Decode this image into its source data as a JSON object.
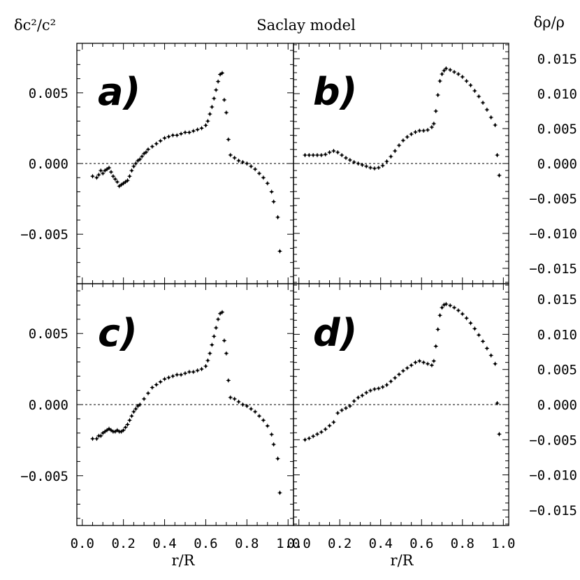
{
  "chart_data": {
    "type": "scatter",
    "title": "Saclay model",
    "left_ylabel": "δc²/c²",
    "right_ylabel": "δρ/ρ",
    "xlabel": "r/R",
    "xlim": [
      0.0,
      1.0
    ],
    "xticks": [
      "0.0",
      "0.2",
      "0.4",
      "0.6",
      "0.8",
      "1.0"
    ],
    "left_ylim": [
      -0.0085,
      0.0085
    ],
    "left_yticks": [
      "0.005",
      "0.000",
      "-0.005"
    ],
    "right_ylim": [
      -0.0172,
      0.0172
    ],
    "right_yticks": [
      "0.015",
      "0.010",
      "0.005",
      "0.000",
      "-0.005",
      "-0.010",
      "-0.015"
    ],
    "panels": [
      {
        "label": "a)",
        "axis": "left",
        "points": [
          [
            0.05,
            -0.0009
          ],
          [
            0.07,
            -0.001
          ],
          [
            0.08,
            -0.0008
          ],
          [
            0.09,
            -0.0005
          ],
          [
            0.1,
            -0.0007
          ],
          [
            0.11,
            -0.0005
          ],
          [
            0.12,
            -0.0004
          ],
          [
            0.13,
            -0.0003
          ],
          [
            0.14,
            -0.0006
          ],
          [
            0.15,
            -0.0009
          ],
          [
            0.16,
            -0.0011
          ],
          [
            0.17,
            -0.0013
          ],
          [
            0.18,
            -0.0016
          ],
          [
            0.19,
            -0.0015
          ],
          [
            0.2,
            -0.0014
          ],
          [
            0.21,
            -0.0013
          ],
          [
            0.22,
            -0.0012
          ],
          [
            0.23,
            -0.0009
          ],
          [
            0.24,
            -0.0005
          ],
          [
            0.25,
            -0.0002
          ],
          [
            0.26,
            0.0
          ],
          [
            0.27,
            0.0002
          ],
          [
            0.28,
            0.0003
          ],
          [
            0.29,
            0.0005
          ],
          [
            0.3,
            0.0007
          ],
          [
            0.31,
            0.0008
          ],
          [
            0.32,
            0.001
          ],
          [
            0.34,
            0.0012
          ],
          [
            0.36,
            0.0014
          ],
          [
            0.38,
            0.0016
          ],
          [
            0.4,
            0.0018
          ],
          [
            0.42,
            0.0019
          ],
          [
            0.44,
            0.002
          ],
          [
            0.46,
            0.002
          ],
          [
            0.48,
            0.0021
          ],
          [
            0.5,
            0.0022
          ],
          [
            0.52,
            0.0022
          ],
          [
            0.54,
            0.0023
          ],
          [
            0.56,
            0.0024
          ],
          [
            0.58,
            0.0025
          ],
          [
            0.6,
            0.0027
          ],
          [
            0.61,
            0.003
          ],
          [
            0.62,
            0.0035
          ],
          [
            0.63,
            0.004
          ],
          [
            0.64,
            0.0046
          ],
          [
            0.65,
            0.0052
          ],
          [
            0.66,
            0.0058
          ],
          [
            0.67,
            0.0063
          ],
          [
            0.68,
            0.0064
          ],
          [
            0.69,
            0.0045
          ],
          [
            0.7,
            0.0036
          ],
          [
            0.71,
            0.0017
          ],
          [
            0.72,
            0.0006
          ],
          [
            0.74,
            0.0004
          ],
          [
            0.76,
            0.0002
          ],
          [
            0.78,
            0.0001
          ],
          [
            0.8,
            0.0
          ],
          [
            0.82,
            -0.0002
          ],
          [
            0.84,
            -0.0004
          ],
          [
            0.86,
            -0.0007
          ],
          [
            0.88,
            -0.001
          ],
          [
            0.9,
            -0.0014
          ],
          [
            0.92,
            -0.002
          ],
          [
            0.93,
            -0.0027
          ],
          [
            0.95,
            -0.0038
          ],
          [
            0.96,
            -0.0062
          ]
        ]
      },
      {
        "label": "b)",
        "axis": "right",
        "points": [
          [
            0.03,
            0.0012
          ],
          [
            0.05,
            0.0012
          ],
          [
            0.07,
            0.0012
          ],
          [
            0.09,
            0.0012
          ],
          [
            0.11,
            0.0012
          ],
          [
            0.13,
            0.0013
          ],
          [
            0.15,
            0.0016
          ],
          [
            0.17,
            0.0018
          ],
          [
            0.19,
            0.0016
          ],
          [
            0.21,
            0.0012
          ],
          [
            0.23,
            0.0008
          ],
          [
            0.25,
            0.0005
          ],
          [
            0.27,
            0.0002
          ],
          [
            0.29,
            0.0
          ],
          [
            0.31,
            -0.0002
          ],
          [
            0.33,
            -0.0004
          ],
          [
            0.35,
            -0.0006
          ],
          [
            0.37,
            -0.0007
          ],
          [
            0.39,
            -0.0006
          ],
          [
            0.41,
            -0.0003
          ],
          [
            0.43,
            0.0003
          ],
          [
            0.45,
            0.001
          ],
          [
            0.47,
            0.0018
          ],
          [
            0.49,
            0.0026
          ],
          [
            0.51,
            0.0033
          ],
          [
            0.53,
            0.0038
          ],
          [
            0.55,
            0.0042
          ],
          [
            0.57,
            0.0045
          ],
          [
            0.59,
            0.0047
          ],
          [
            0.61,
            0.0047
          ],
          [
            0.63,
            0.0048
          ],
          [
            0.65,
            0.0052
          ],
          [
            0.66,
            0.0057
          ],
          [
            0.67,
            0.0075
          ],
          [
            0.68,
            0.0098
          ],
          [
            0.69,
            0.0118
          ],
          [
            0.7,
            0.0128
          ],
          [
            0.71,
            0.0133
          ],
          [
            0.72,
            0.0136
          ],
          [
            0.74,
            0.0134
          ],
          [
            0.76,
            0.0131
          ],
          [
            0.78,
            0.0128
          ],
          [
            0.8,
            0.0124
          ],
          [
            0.82,
            0.0118
          ],
          [
            0.84,
            0.0112
          ],
          [
            0.86,
            0.0104
          ],
          [
            0.88,
            0.0096
          ],
          [
            0.9,
            0.0087
          ],
          [
            0.92,
            0.0077
          ],
          [
            0.94,
            0.0066
          ],
          [
            0.96,
            0.0055
          ],
          [
            0.97,
            0.0012
          ],
          [
            0.98,
            -0.0017
          ]
        ]
      },
      {
        "label": "c)",
        "axis": "left",
        "points": [
          [
            0.05,
            -0.0024
          ],
          [
            0.07,
            -0.0024
          ],
          [
            0.08,
            -0.0022
          ],
          [
            0.09,
            -0.0022
          ],
          [
            0.1,
            -0.002
          ],
          [
            0.11,
            -0.0019
          ],
          [
            0.12,
            -0.0018
          ],
          [
            0.13,
            -0.0017
          ],
          [
            0.14,
            -0.0018
          ],
          [
            0.15,
            -0.0019
          ],
          [
            0.16,
            -0.0019
          ],
          [
            0.17,
            -0.0018
          ],
          [
            0.18,
            -0.0019
          ],
          [
            0.19,
            -0.0019
          ],
          [
            0.2,
            -0.0018
          ],
          [
            0.21,
            -0.0016
          ],
          [
            0.22,
            -0.0014
          ],
          [
            0.23,
            -0.0011
          ],
          [
            0.24,
            -0.0008
          ],
          [
            0.25,
            -0.0005
          ],
          [
            0.26,
            -0.0003
          ],
          [
            0.27,
            -0.0001
          ],
          [
            0.28,
            0.0
          ],
          [
            0.3,
            0.0004
          ],
          [
            0.32,
            0.0008
          ],
          [
            0.34,
            0.0012
          ],
          [
            0.36,
            0.0014
          ],
          [
            0.38,
            0.0016
          ],
          [
            0.4,
            0.0018
          ],
          [
            0.42,
            0.0019
          ],
          [
            0.44,
            0.002
          ],
          [
            0.46,
            0.0021
          ],
          [
            0.48,
            0.0021
          ],
          [
            0.5,
            0.0022
          ],
          [
            0.52,
            0.0023
          ],
          [
            0.54,
            0.0023
          ],
          [
            0.56,
            0.0024
          ],
          [
            0.58,
            0.0025
          ],
          [
            0.6,
            0.0027
          ],
          [
            0.61,
            0.0031
          ],
          [
            0.62,
            0.0036
          ],
          [
            0.63,
            0.0042
          ],
          [
            0.64,
            0.0048
          ],
          [
            0.65,
            0.0054
          ],
          [
            0.66,
            0.006
          ],
          [
            0.67,
            0.0064
          ],
          [
            0.68,
            0.0065
          ],
          [
            0.69,
            0.0045
          ],
          [
            0.7,
            0.0036
          ],
          [
            0.71,
            0.0017
          ],
          [
            0.72,
            0.0005
          ],
          [
            0.74,
            0.0004
          ],
          [
            0.76,
            0.0002
          ],
          [
            0.78,
            0.0
          ],
          [
            0.8,
            -0.0001
          ],
          [
            0.82,
            -0.0003
          ],
          [
            0.84,
            -0.0005
          ],
          [
            0.86,
            -0.0008
          ],
          [
            0.88,
            -0.0011
          ],
          [
            0.9,
            -0.0015
          ],
          [
            0.92,
            -0.0021
          ],
          [
            0.93,
            -0.0028
          ],
          [
            0.95,
            -0.0038
          ],
          [
            0.96,
            -0.0062
          ]
        ]
      },
      {
        "label": "d)",
        "axis": "right",
        "points": [
          [
            0.03,
            -0.005
          ],
          [
            0.05,
            -0.0048
          ],
          [
            0.07,
            -0.0045
          ],
          [
            0.09,
            -0.0042
          ],
          [
            0.11,
            -0.0039
          ],
          [
            0.13,
            -0.0035
          ],
          [
            0.15,
            -0.003
          ],
          [
            0.17,
            -0.0025
          ],
          [
            0.19,
            -0.0012
          ],
          [
            0.21,
            -0.0008
          ],
          [
            0.23,
            -0.0005
          ],
          [
            0.25,
            -0.0002
          ],
          [
            0.27,
            0.0005
          ],
          [
            0.29,
            0.001
          ],
          [
            0.31,
            0.0013
          ],
          [
            0.33,
            0.0017
          ],
          [
            0.35,
            0.002
          ],
          [
            0.37,
            0.0022
          ],
          [
            0.39,
            0.0023
          ],
          [
            0.41,
            0.0025
          ],
          [
            0.43,
            0.0028
          ],
          [
            0.45,
            0.0033
          ],
          [
            0.47,
            0.0038
          ],
          [
            0.49,
            0.0043
          ],
          [
            0.51,
            0.0048
          ],
          [
            0.53,
            0.0052
          ],
          [
            0.55,
            0.0056
          ],
          [
            0.57,
            0.006
          ],
          [
            0.59,
            0.0062
          ],
          [
            0.61,
            0.006
          ],
          [
            0.63,
            0.0058
          ],
          [
            0.65,
            0.0056
          ],
          [
            0.66,
            0.0062
          ],
          [
            0.67,
            0.0083
          ],
          [
            0.68,
            0.0107
          ],
          [
            0.69,
            0.0127
          ],
          [
            0.7,
            0.0138
          ],
          [
            0.71,
            0.0142
          ],
          [
            0.72,
            0.0143
          ],
          [
            0.74,
            0.0141
          ],
          [
            0.76,
            0.0138
          ],
          [
            0.78,
            0.0134
          ],
          [
            0.8,
            0.0129
          ],
          [
            0.82,
            0.0123
          ],
          [
            0.84,
            0.0116
          ],
          [
            0.86,
            0.0108
          ],
          [
            0.88,
            0.0099
          ],
          [
            0.9,
            0.009
          ],
          [
            0.92,
            0.008
          ],
          [
            0.94,
            0.007
          ],
          [
            0.96,
            0.0058
          ],
          [
            0.97,
            0.0002
          ],
          [
            0.98,
            -0.0042
          ]
        ]
      }
    ]
  }
}
